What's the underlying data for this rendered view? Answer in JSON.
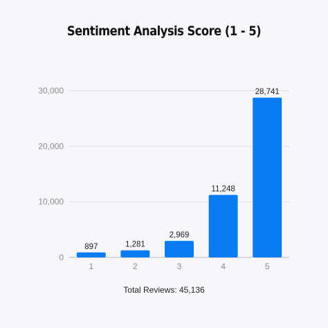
{
  "chart_data": {
    "type": "bar",
    "title": "Sentiment Analysis Score (1 - 5)",
    "xlabel": "",
    "ylabel": "",
    "categories": [
      "1",
      "2",
      "3",
      "4",
      "5"
    ],
    "values": [
      897,
      1281,
      2969,
      11248,
      28741
    ],
    "value_labels": [
      "897",
      "1,281",
      "2,969",
      "11,248",
      "28,741"
    ],
    "ylim": [
      0,
      30000
    ],
    "yticks": [
      0,
      10000,
      20000,
      30000
    ],
    "ytick_labels": [
      "0",
      "10,000",
      "20,000",
      "30,000"
    ],
    "grid": true,
    "legend": "none",
    "bar_color": "#0a7cf2",
    "footer": "Total Reviews: 45,136"
  }
}
